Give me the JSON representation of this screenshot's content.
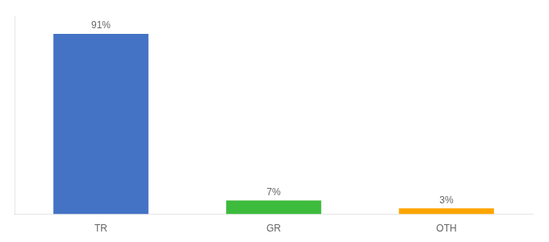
{
  "chart_data": {
    "type": "bar",
    "categories": [
      "TR",
      "GR",
      "OTH"
    ],
    "values": [
      91,
      7,
      3
    ],
    "value_labels": [
      "91%",
      "7%",
      "3%"
    ],
    "colors": [
      "#4472C4",
      "#3DBB3D",
      "#FFA500"
    ],
    "ylim": [
      0,
      100
    ],
    "grid": false,
    "data_labels": true,
    "tick_labels": "x"
  }
}
